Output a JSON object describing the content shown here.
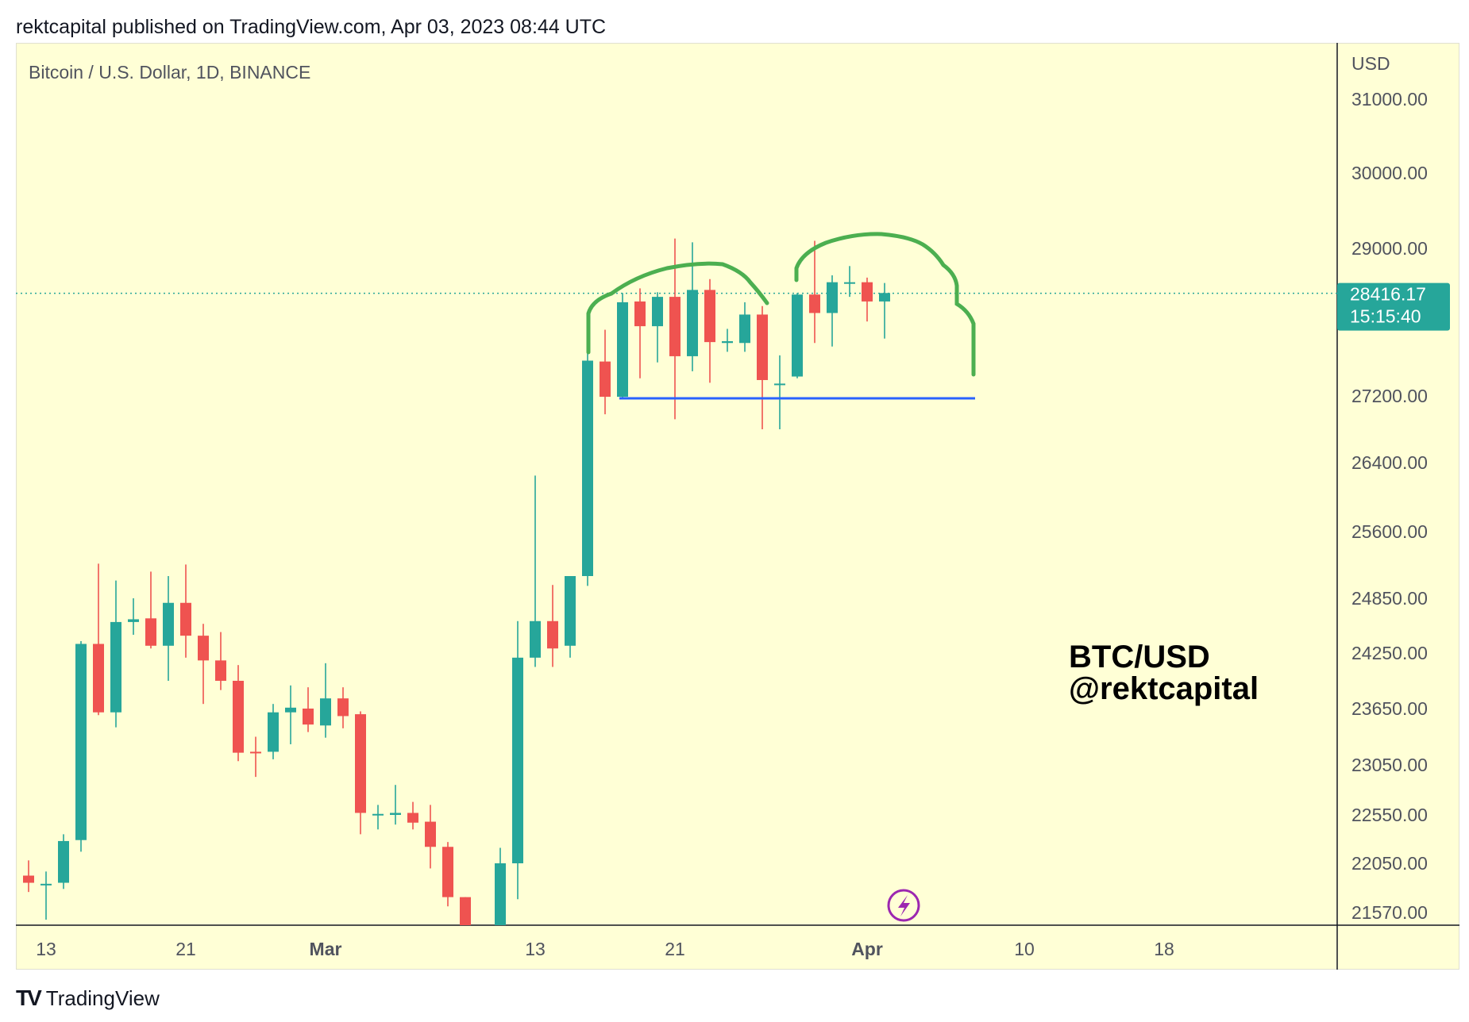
{
  "header": {
    "publisher_line": "rektcapital published on TradingView.com, Apr 03, 2023 08:44 UTC"
  },
  "chart": {
    "symbol_line": "Bitcoin / U.S. Dollar, 1D, BINANCE",
    "currency_label": "USD",
    "watermark_line1": "BTC/USD",
    "watermark_line2": "@rektcapital",
    "flash_icon": "lightning-bolt-icon"
  },
  "footer": {
    "brand_logo": "TV",
    "brand_name": "TradingView"
  },
  "colors": {
    "background": "#ffffd6",
    "up": "#26a69a",
    "down": "#ef5350",
    "drawing_arc": "#4caf50",
    "support_line": "#2962ff",
    "price_tag": "#26a69a"
  },
  "chart_data": {
    "type": "candlestick",
    "x_ticks": [
      {
        "label": "13",
        "day": 0
      },
      {
        "label": "21",
        "day": 8
      },
      {
        "label": "Mar",
        "day": 16
      },
      {
        "label": "13",
        "day": 28
      },
      {
        "label": "21",
        "day": 36
      },
      {
        "label": "Apr",
        "day": 47
      },
      {
        "label": "10",
        "day": 56
      },
      {
        "label": "18",
        "day": 64
      }
    ],
    "y_ticks": [
      {
        "label": "31000.00",
        "value": 31000
      },
      {
        "label": "30000.00",
        "value": 30000
      },
      {
        "label": "29000.00",
        "value": 29000
      },
      {
        "label": "27200.00",
        "value": 27200
      },
      {
        "label": "26400.00",
        "value": 26400
      },
      {
        "label": "25600.00",
        "value": 25600
      },
      {
        "label": "24850.00",
        "value": 24850
      },
      {
        "label": "24250.00",
        "value": 24250
      },
      {
        "label": "23650.00",
        "value": 23650
      },
      {
        "label": "23050.00",
        "value": 23050
      },
      {
        "label": "22550.00",
        "value": 22550
      },
      {
        "label": "22050.00",
        "value": 22050
      },
      {
        "label": "21570.00",
        "value": 21570
      }
    ],
    "last_price": {
      "value": 28416.17,
      "label": "28416.17",
      "countdown": "15:15:40"
    },
    "candles": [
      {
        "day": -1,
        "o": 21930,
        "h": 22080,
        "l": 21770,
        "c": 21860
      },
      {
        "day": 0,
        "o": 21840,
        "h": 21970,
        "l": 21500,
        "c": 21850
      },
      {
        "day": 1,
        "o": 21860,
        "h": 22350,
        "l": 21800,
        "c": 22280
      },
      {
        "day": 2,
        "o": 22290,
        "h": 24380,
        "l": 22170,
        "c": 24350
      },
      {
        "day": 3,
        "o": 24350,
        "h": 25240,
        "l": 23580,
        "c": 23610
      },
      {
        "day": 4,
        "o": 23610,
        "h": 25050,
        "l": 23450,
        "c": 24590
      },
      {
        "day": 5,
        "o": 24590,
        "h": 24850,
        "l": 24450,
        "c": 24620
      },
      {
        "day": 6,
        "o": 24630,
        "h": 25150,
        "l": 24300,
        "c": 24330
      },
      {
        "day": 7,
        "o": 24330,
        "h": 25100,
        "l": 23950,
        "c": 24800
      },
      {
        "day": 8,
        "o": 24800,
        "h": 25230,
        "l": 24200,
        "c": 24440
      },
      {
        "day": 9,
        "o": 24440,
        "h": 24570,
        "l": 23700,
        "c": 24170
      },
      {
        "day": 10,
        "o": 24170,
        "h": 24480,
        "l": 23850,
        "c": 23950
      },
      {
        "day": 11,
        "o": 23950,
        "h": 24120,
        "l": 23090,
        "c": 23180
      },
      {
        "day": 12,
        "o": 23190,
        "h": 23350,
        "l": 22930,
        "c": 23180
      },
      {
        "day": 13,
        "o": 23190,
        "h": 23700,
        "l": 23110,
        "c": 23610
      },
      {
        "day": 14,
        "o": 23610,
        "h": 23900,
        "l": 23270,
        "c": 23660
      },
      {
        "day": 15,
        "o": 23650,
        "h": 23880,
        "l": 23400,
        "c": 23480
      },
      {
        "day": 16,
        "o": 23470,
        "h": 24140,
        "l": 23340,
        "c": 23760
      },
      {
        "day": 17,
        "o": 23760,
        "h": 23880,
        "l": 23440,
        "c": 23570
      },
      {
        "day": 18,
        "o": 23590,
        "h": 23620,
        "l": 22350,
        "c": 22570
      },
      {
        "day": 19,
        "o": 22560,
        "h": 22650,
        "l": 22400,
        "c": 22560
      },
      {
        "day": 20,
        "o": 22550,
        "h": 22850,
        "l": 22450,
        "c": 22570
      },
      {
        "day": 21,
        "o": 22570,
        "h": 22680,
        "l": 22400,
        "c": 22470
      },
      {
        "day": 22,
        "o": 22480,
        "h": 22650,
        "l": 22000,
        "c": 22220
      },
      {
        "day": 23,
        "o": 22220,
        "h": 22270,
        "l": 21630,
        "c": 21720
      },
      {
        "day": 24,
        "o": 21720,
        "h": 21720,
        "l": 21240,
        "c": 21240
      },
      {
        "day": 26,
        "o": 21240,
        "h": 22210,
        "l": 21240,
        "c": 22050
      },
      {
        "day": 27,
        "o": 22050,
        "h": 24600,
        "l": 21700,
        "c": 24200
      },
      {
        "day": 28,
        "o": 24200,
        "h": 26250,
        "l": 24100,
        "c": 24600
      },
      {
        "day": 29,
        "o": 24600,
        "h": 25000,
        "l": 24100,
        "c": 24300
      },
      {
        "day": 30,
        "o": 24330,
        "h": 25050,
        "l": 24200,
        "c": 25100
      },
      {
        "day": 31,
        "o": 25100,
        "h": 27950,
        "l": 24990,
        "c": 27600
      },
      {
        "day": 32,
        "o": 27590,
        "h": 27950,
        "l": 26980,
        "c": 27190
      },
      {
        "day": 33,
        "o": 27190,
        "h": 28420,
        "l": 27180,
        "c": 28300
      },
      {
        "day": 34,
        "o": 28310,
        "h": 28480,
        "l": 27400,
        "c": 27990
      },
      {
        "day": 35,
        "o": 27990,
        "h": 28430,
        "l": 27580,
        "c": 28370
      },
      {
        "day": 36,
        "o": 28370,
        "h": 29130,
        "l": 26920,
        "c": 27650
      },
      {
        "day": 37,
        "o": 27650,
        "h": 29080,
        "l": 27480,
        "c": 28460
      },
      {
        "day": 38,
        "o": 28460,
        "h": 28600,
        "l": 27350,
        "c": 27810
      },
      {
        "day": 39,
        "o": 27800,
        "h": 27960,
        "l": 27700,
        "c": 27820
      },
      {
        "day": 40,
        "o": 27800,
        "h": 28300,
        "l": 27700,
        "c": 28140
      },
      {
        "day": 41,
        "o": 28140,
        "h": 28250,
        "l": 26800,
        "c": 27380
      },
      {
        "day": 42,
        "o": 27340,
        "h": 27660,
        "l": 26800,
        "c": 27340
      },
      {
        "day": 43,
        "o": 27420,
        "h": 28420,
        "l": 27400,
        "c": 28400
      },
      {
        "day": 44,
        "o": 28400,
        "h": 29100,
        "l": 27800,
        "c": 28160
      },
      {
        "day": 45,
        "o": 28160,
        "h": 28650,
        "l": 27760,
        "c": 28560
      },
      {
        "day": 46,
        "o": 28560,
        "h": 28770,
        "l": 28370,
        "c": 28560
      },
      {
        "day": 47,
        "o": 28560,
        "h": 28620,
        "l": 28050,
        "c": 28310
      },
      {
        "day": 48,
        "o": 28310,
        "h": 28550,
        "l": 27850,
        "c": 28420
      }
    ]
  }
}
